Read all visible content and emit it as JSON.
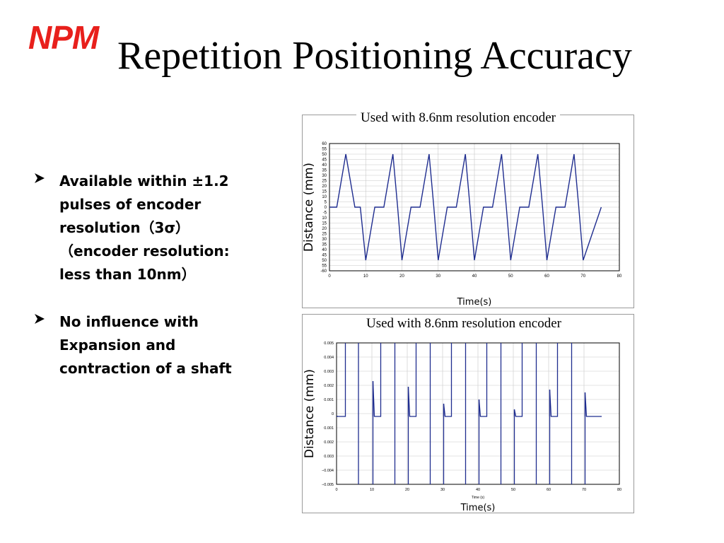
{
  "logo": {
    "text": "NPM"
  },
  "slide": {
    "title": "Repetition Positioning Accuracy"
  },
  "bullets": [
    {
      "lines": [
        "Available within ±1.2",
        "pulses of encoder",
        "resolution（3σ）",
        "（encoder resolution:",
        "less than 10nm）"
      ]
    },
    {
      "lines": [
        "No influence with",
        "Expansion and",
        "contraction of a shaft"
      ]
    }
  ],
  "chart_data": [
    {
      "type": "line",
      "title": "Used with 8.6nm resolution encoder",
      "xlabel": "Time(s)",
      "ylabel": "Distance (mm)",
      "xlim": [
        0,
        80
      ],
      "ylim": [
        -60,
        60
      ],
      "x_ticks": [
        0,
        10,
        20,
        30,
        40,
        50,
        60,
        70,
        80
      ],
      "y_ticks": [
        60,
        55,
        50,
        45,
        40,
        35,
        30,
        25,
        20,
        15,
        10,
        5,
        0,
        -5,
        10,
        15,
        20,
        25,
        30,
        35,
        40,
        45,
        50,
        55,
        -60
      ],
      "grid": true,
      "series_color": "#1f2d8f",
      "series": [
        {
          "x": [
            0,
            2,
            4.5,
            7,
            8.5,
            10,
            12.5,
            15,
            17.5,
            18.8,
            20,
            22.5,
            25,
            27.5,
            28.8,
            30,
            32.5,
            35,
            37.5,
            38.8,
            40,
            42.5,
            45,
            47.5,
            48.8,
            50,
            52.5,
            55,
            57.5,
            58.8,
            60,
            62.5,
            65,
            67.5,
            68.8,
            70,
            75
          ],
          "y": [
            0,
            0,
            50,
            0,
            0,
            -50,
            0,
            0,
            50,
            0,
            -50,
            0,
            0,
            50,
            0,
            -50,
            0,
            0,
            50,
            0,
            -50,
            0,
            0,
            50,
            0,
            -50,
            0,
            0,
            50,
            0,
            -50,
            0,
            0,
            50,
            0,
            -50,
            0
          ]
        }
      ]
    },
    {
      "type": "line",
      "title": "Used with 8.6nm resolution encoder",
      "xlabel": "Time(s)",
      "xlabel_small": "Time (s)",
      "ylabel": "Distance (mm)",
      "xlim": [
        0,
        80
      ],
      "ylim": [
        -0.005,
        0.005
      ],
      "x_ticks": [
        0,
        10,
        20,
        30,
        40,
        50,
        60,
        70,
        80
      ],
      "y_ticks": [
        "0.005",
        "0.004",
        "0.003",
        "0.002",
        "0.001",
        "0",
        "0.001",
        "0.002",
        "0.003",
        "−0.004",
        "−0.005"
      ],
      "grid": true,
      "series_color": "#1f2d8f",
      "base_offset": -0.0002,
      "settles": [
        {
          "t": 0.2,
          "v": -0.00015
        },
        {
          "t": 10.3,
          "v": 0.0023
        },
        {
          "t": 20.3,
          "v": 0.0019
        },
        {
          "t": 30.3,
          "v": 0.0007
        },
        {
          "t": 40.3,
          "v": 0.001
        },
        {
          "t": 50.3,
          "v": 0.0003
        },
        {
          "t": 60.3,
          "v": 0.0017
        },
        {
          "t": 70.3,
          "v": 0.0015
        }
      ],
      "jumps_up": [
        2.5,
        12.5,
        22.5,
        32.5,
        42.5,
        52.5,
        62.5
      ],
      "drops": [
        6.2,
        16.5,
        26.5,
        36.5,
        46.5,
        56.5,
        66.5
      ],
      "end_x": 75
    }
  ]
}
